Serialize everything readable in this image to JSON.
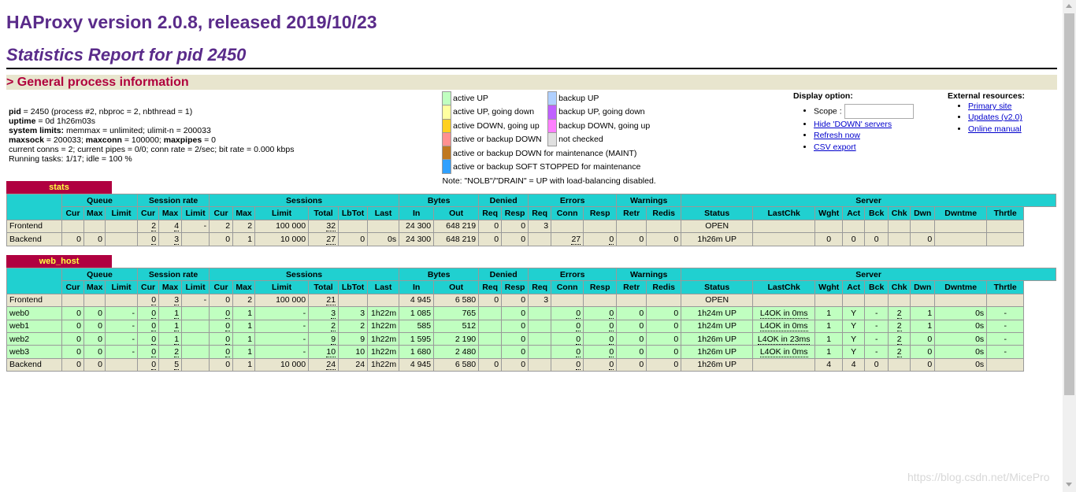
{
  "header": {
    "title": "HAProxy version 2.0.8, released 2019/10/23",
    "subtitle": "Statistics Report for pid 2450",
    "section": "> General process information"
  },
  "procinfo": {
    "line1_key": "pid",
    "line1_val": " = 2450 (process #2, nbproc = 2, nbthread = 1)",
    "line2_key": "uptime",
    "line2_val": " = 0d 1h26m03s",
    "line3_key": "system limits:",
    "line3_val": " memmax = unlimited; ulimit-n = 200033",
    "line4_k1": "maxsock",
    "line4_v1": " = 200033; ",
    "line4_k2": "maxconn",
    "line4_v2": " = 100000; ",
    "line4_k3": "maxpipes",
    "line4_v3": " = 0",
    "line5": "current conns = 2; current pipes = 0/0; conn rate = 2/sec; bit rate = 0.000 kbps",
    "line6": "Running tasks: 1/17; idle = 100 %"
  },
  "legend": {
    "items": [
      {
        "c1": "#c0ffc0",
        "t1": "active UP",
        "c2": "#b0d0ff",
        "t2": "backup UP"
      },
      {
        "c1": "#ffffa0",
        "t1": "active UP, going down",
        "c2": "#c060ff",
        "t2": "backup UP, going down"
      },
      {
        "c1": "#ffd020",
        "t1": "active DOWN, going up",
        "c2": "#ff80ff",
        "t2": "backup DOWN, going up"
      },
      {
        "c1": "#ff9090",
        "t1": "active or backup DOWN",
        "c2": "#e0e0e0",
        "t2": "not checked"
      },
      {
        "c1": "#c07820",
        "t1": "active or backup DOWN for maintenance (MAINT)"
      },
      {
        "c1": "#30a0ff",
        "t1": "active or backup SOFT STOPPED for maintenance"
      }
    ],
    "note": "Note: \"NOLB\"/\"DRAIN\" = UP with load-balancing disabled."
  },
  "display_option": {
    "heading": "Display option:",
    "scope_label": "Scope :",
    "scope_value": "",
    "links": [
      "Hide 'DOWN' servers",
      "Refresh now",
      "CSV export"
    ]
  },
  "external": {
    "heading": "External resources:",
    "links": [
      "Primary site",
      "Updates (v2.0)",
      "Online manual"
    ]
  },
  "columns": {
    "groups": [
      "Queue",
      "Session rate",
      "Sessions",
      "Bytes",
      "Denied",
      "Errors",
      "Warnings",
      "Server"
    ],
    "sub": [
      "Cur",
      "Max",
      "Limit",
      "Cur",
      "Max",
      "Limit",
      "Cur",
      "Max",
      "Limit",
      "Total",
      "LbTot",
      "Last",
      "In",
      "Out",
      "Req",
      "Resp",
      "Req",
      "Conn",
      "Resp",
      "Retr",
      "Redis",
      "Status",
      "LastChk",
      "Wght",
      "Act",
      "Bck",
      "Chk",
      "Dwn",
      "Dwntme",
      "Thrtle"
    ]
  },
  "proxies": [
    {
      "name": "stats",
      "rows": [
        {
          "type": "frontend",
          "cells": [
            "Frontend",
            "",
            "",
            "",
            "2",
            "4",
            "-",
            "2",
            "2",
            "100 000",
            "32",
            "",
            "",
            "24 300",
            "648 219",
            "0",
            "0",
            "3",
            "",
            "",
            "",
            "",
            "OPEN",
            "",
            "",
            "",
            "",
            "",
            "",
            "",
            ""
          ]
        },
        {
          "type": "backend",
          "cells": [
            "Backend",
            "0",
            "0",
            "",
            "0",
            "3",
            "",
            "0",
            "1",
            "10 000",
            "27",
            "0",
            "0s",
            "24 300",
            "648 219",
            "0",
            "0",
            "",
            "27",
            "0",
            "0",
            "0",
            "1h26m UP",
            "",
            "0",
            "0",
            "0",
            "",
            "0",
            "",
            ""
          ]
        }
      ]
    },
    {
      "name": "web_host",
      "rows": [
        {
          "type": "frontend",
          "cells": [
            "Frontend",
            "",
            "",
            "",
            "0",
            "3",
            "-",
            "0",
            "2",
            "100 000",
            "21",
            "",
            "",
            "4 945",
            "6 580",
            "0",
            "0",
            "3",
            "",
            "",
            "",
            "",
            "OPEN",
            "",
            "",
            "",
            "",
            "",
            "",
            "",
            ""
          ]
        },
        {
          "type": "active",
          "cells": [
            "web0",
            "0",
            "0",
            "-",
            "0",
            "1",
            "",
            "0",
            "1",
            "-",
            "3",
            "3",
            "1h22m",
            "1 085",
            "765",
            "",
            "0",
            "",
            "0",
            "0",
            "0",
            "0",
            "1h24m UP",
            "L4OK in 0ms",
            "1",
            "Y",
            "-",
            "2",
            "1",
            "0s",
            "-"
          ]
        },
        {
          "type": "active",
          "cells": [
            "web1",
            "0",
            "0",
            "-",
            "0",
            "1",
            "",
            "0",
            "1",
            "-",
            "2",
            "2",
            "1h22m",
            "585",
            "512",
            "",
            "0",
            "",
            "0",
            "0",
            "0",
            "0",
            "1h24m UP",
            "L4OK in 0ms",
            "1",
            "Y",
            "-",
            "2",
            "1",
            "0s",
            "-"
          ]
        },
        {
          "type": "active",
          "cells": [
            "web2",
            "0",
            "0",
            "-",
            "0",
            "1",
            "",
            "0",
            "1",
            "-",
            "9",
            "9",
            "1h22m",
            "1 595",
            "2 190",
            "",
            "0",
            "",
            "0",
            "0",
            "0",
            "0",
            "1h26m UP",
            "L4OK in 23ms",
            "1",
            "Y",
            "-",
            "2",
            "0",
            "0s",
            "-"
          ]
        },
        {
          "type": "active",
          "cells": [
            "web3",
            "0",
            "0",
            "-",
            "0",
            "2",
            "",
            "0",
            "1",
            "-",
            "10",
            "10",
            "1h22m",
            "1 680",
            "2 480",
            "",
            "0",
            "",
            "0",
            "0",
            "0",
            "0",
            "1h26m UP",
            "L4OK in 0ms",
            "1",
            "Y",
            "-",
            "2",
            "0",
            "0s",
            "-"
          ]
        },
        {
          "type": "backend",
          "cells": [
            "Backend",
            "0",
            "0",
            "",
            "0",
            "5",
            "",
            "0",
            "1",
            "10 000",
            "24",
            "24",
            "1h22m",
            "4 945",
            "6 580",
            "0",
            "0",
            "",
            "0",
            "0",
            "0",
            "0",
            "1h26m UP",
            "",
            "4",
            "4",
            "0",
            "",
            "0",
            "0s",
            ""
          ]
        }
      ]
    }
  ],
  "watermark": "https://blog.csdn.net/MicePro"
}
